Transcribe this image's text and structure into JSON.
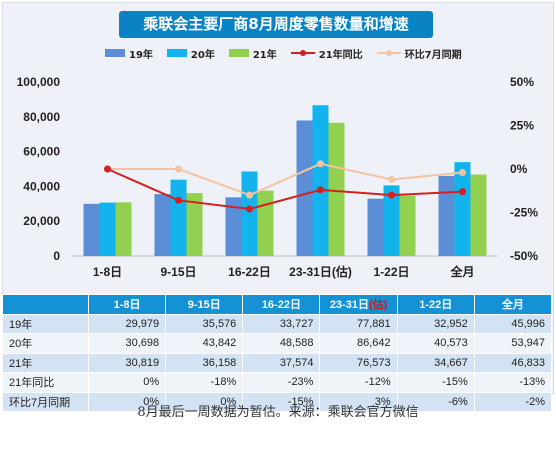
{
  "title": "乘联会主要厂商8月周度零售数量和增速",
  "legend": {
    "s19": "19年",
    "s20": "20年",
    "s21": "21年",
    "yoy21": "21年同比",
    "mom": "环比7月同期"
  },
  "colors": {
    "s19": "#5b8ed6",
    "s20": "#13b3ee",
    "s21": "#92d050",
    "yoy21": "#d42020",
    "mom": "#f5c3a0",
    "header": "#1592d6",
    "banner": "#0b82c4"
  },
  "chart_data": {
    "type": "bar",
    "categories": [
      "1-8日",
      "9-15日",
      "16-22日",
      "23-31日(估)",
      "1-22日",
      "全月"
    ],
    "series": [
      {
        "name": "19年",
        "values": [
          29979,
          35576,
          33727,
          77881,
          32952,
          45996
        ]
      },
      {
        "name": "20年",
        "values": [
          30698,
          43842,
          48588,
          86642,
          40573,
          53947
        ]
      },
      {
        "name": "21年",
        "values": [
          30819,
          36158,
          37574,
          76573,
          34667,
          46833
        ]
      }
    ],
    "line_series": [
      {
        "name": "21年同比",
        "values": [
          0,
          -18,
          -23,
          -12,
          -15,
          -13
        ],
        "axis": "right"
      },
      {
        "name": "环比7月同期",
        "values": [
          0,
          0,
          -15,
          3,
          -6,
          -2
        ],
        "axis": "right"
      }
    ],
    "ylim": [
      0,
      100000
    ],
    "yticks": [
      "0",
      "20,000",
      "40,000",
      "60,000",
      "80,000",
      "100,000"
    ],
    "y2lim": [
      -50,
      50
    ],
    "y2ticks": [
      "-50%",
      "-25%",
      "0%",
      "25%",
      "50%"
    ],
    "legend_position": "top"
  },
  "table": {
    "headers": [
      "1-8日",
      "9-15日",
      "16-22日",
      "23-31日",
      "1-22日",
      "全月"
    ],
    "header_est": "(估)",
    "rows": [
      {
        "label": "19年",
        "cells": [
          "29,979",
          "35,576",
          "33,727",
          "77,881",
          "32,952",
          "45,996"
        ]
      },
      {
        "label": "20年",
        "cells": [
          "30,698",
          "43,842",
          "48,588",
          "86,642",
          "40,573",
          "53,947"
        ]
      },
      {
        "label": "21年",
        "cells": [
          "30,819",
          "36,158",
          "37,574",
          "76,573",
          "34,667",
          "46,833"
        ]
      },
      {
        "label": "21年同比",
        "cells": [
          "0%",
          "-18%",
          "-23%",
          "-12%",
          "-15%",
          "-13%"
        ]
      },
      {
        "label": "环比7月同期",
        "cells": [
          "0%",
          "0%",
          "-15%",
          "3%",
          "-6%",
          "-2%"
        ]
      }
    ]
  },
  "caption": "8月最后一周数据为暂估。来源：乘联会官方微信"
}
